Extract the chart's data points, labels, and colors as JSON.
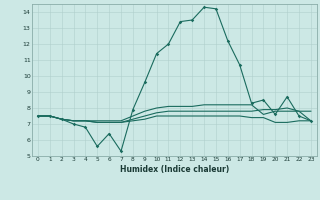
{
  "xlabel": "Humidex (Indice chaleur)",
  "background_color": "#cce8e5",
  "grid_color": "#b0cfcc",
  "line_color": "#1a6b5e",
  "xlim": [
    -0.5,
    23.5
  ],
  "ylim": [
    5,
    14.5
  ],
  "xticks": [
    0,
    1,
    2,
    3,
    4,
    5,
    6,
    7,
    8,
    9,
    10,
    11,
    12,
    13,
    14,
    15,
    16,
    17,
    18,
    19,
    20,
    21,
    22,
    23
  ],
  "yticks": [
    5,
    6,
    7,
    8,
    9,
    10,
    11,
    12,
    13,
    14
  ],
  "line1": [
    7.5,
    7.5,
    7.3,
    7.0,
    6.8,
    5.6,
    6.4,
    5.3,
    7.9,
    9.6,
    11.4,
    12.0,
    13.4,
    13.5,
    14.3,
    14.2,
    12.2,
    10.7,
    8.3,
    8.5,
    7.6,
    8.7,
    7.5,
    7.2
  ],
  "line2": [
    7.5,
    7.5,
    7.3,
    7.2,
    7.2,
    7.2,
    7.2,
    7.2,
    7.5,
    7.8,
    8.0,
    8.1,
    8.1,
    8.1,
    8.2,
    8.2,
    8.2,
    8.2,
    8.2,
    7.6,
    7.8,
    7.8,
    7.8,
    7.2
  ],
  "line3": [
    7.5,
    7.5,
    7.3,
    7.2,
    7.2,
    7.1,
    7.1,
    7.1,
    7.3,
    7.5,
    7.7,
    7.8,
    7.8,
    7.8,
    7.8,
    7.8,
    7.8,
    7.8,
    7.8,
    7.9,
    7.9,
    8.0,
    7.8,
    7.8
  ],
  "line4": [
    7.5,
    7.5,
    7.3,
    7.2,
    7.2,
    7.1,
    7.1,
    7.1,
    7.2,
    7.3,
    7.5,
    7.5,
    7.5,
    7.5,
    7.5,
    7.5,
    7.5,
    7.5,
    7.4,
    7.4,
    7.1,
    7.1,
    7.2,
    7.2
  ]
}
